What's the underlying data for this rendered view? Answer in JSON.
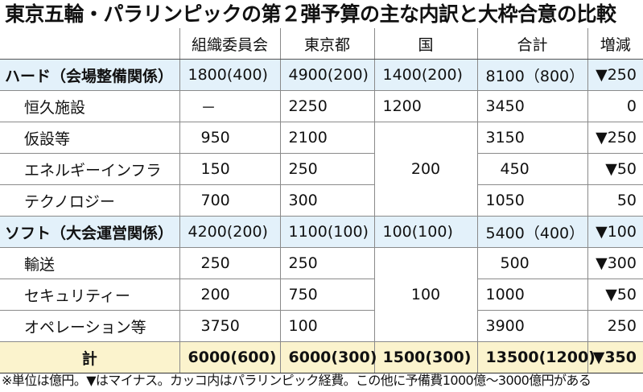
{
  "title": "東京五輪・パラリンピックの第２弾予算の主な内訳と大枠合意の比較",
  "headers": [
    "",
    "組織委員会",
    "東京都",
    "国",
    "合計",
    "増減"
  ],
  "hard": {
    "label": "ハード（会場整備関係）",
    "org": "1800(400)",
    "tokyo": "4900(200)",
    "kuni": "1400(200)",
    "total": "8100（800）",
    "change": "▼250",
    "rows": [
      {
        "label": "恒久施設",
        "org": "－",
        "tokyo": "2250",
        "kuni": "1200",
        "total": "3450",
        "change": "0"
      },
      {
        "label": "仮設等",
        "org": "950",
        "tokyo": "2100",
        "total": "3150",
        "change": "▼250"
      },
      {
        "label": "エネルギーインフラ",
        "org": "150",
        "tokyo": "250",
        "total": "450",
        "change": "▼50"
      },
      {
        "label": "テクノロジー",
        "org": "700",
        "tokyo": "300",
        "total": "1050",
        "change": "50"
      }
    ],
    "merged_kuni": "200"
  },
  "soft": {
    "label": "ソフト（大会運営関係）",
    "org": "4200(200)",
    "tokyo": "1100(100)",
    "kuni": "100(100)",
    "total": "5400（400）",
    "change": "▼100",
    "rows": [
      {
        "label": "輸送",
        "org": "250",
        "tokyo": "250",
        "total": "500",
        "change": "▼300"
      },
      {
        "label": "セキュリティー",
        "org": "200",
        "tokyo": "750",
        "total": "1000",
        "change": "▼50"
      },
      {
        "label": "オペレーション等",
        "org": "3750",
        "tokyo": "100",
        "total": "3900",
        "change": "250"
      }
    ],
    "merged_kuni": "100"
  },
  "total": {
    "label": "計",
    "org": "6000(600)",
    "tokyo": "6000(300)",
    "kuni": "1500(300)",
    "total": "13500(1200)",
    "change": "▼350"
  },
  "footnote": "※単位は億円。▼はマイナス。カッコ内はパラリンピック経費。この他に予備費1000億～3000億円がある"
}
